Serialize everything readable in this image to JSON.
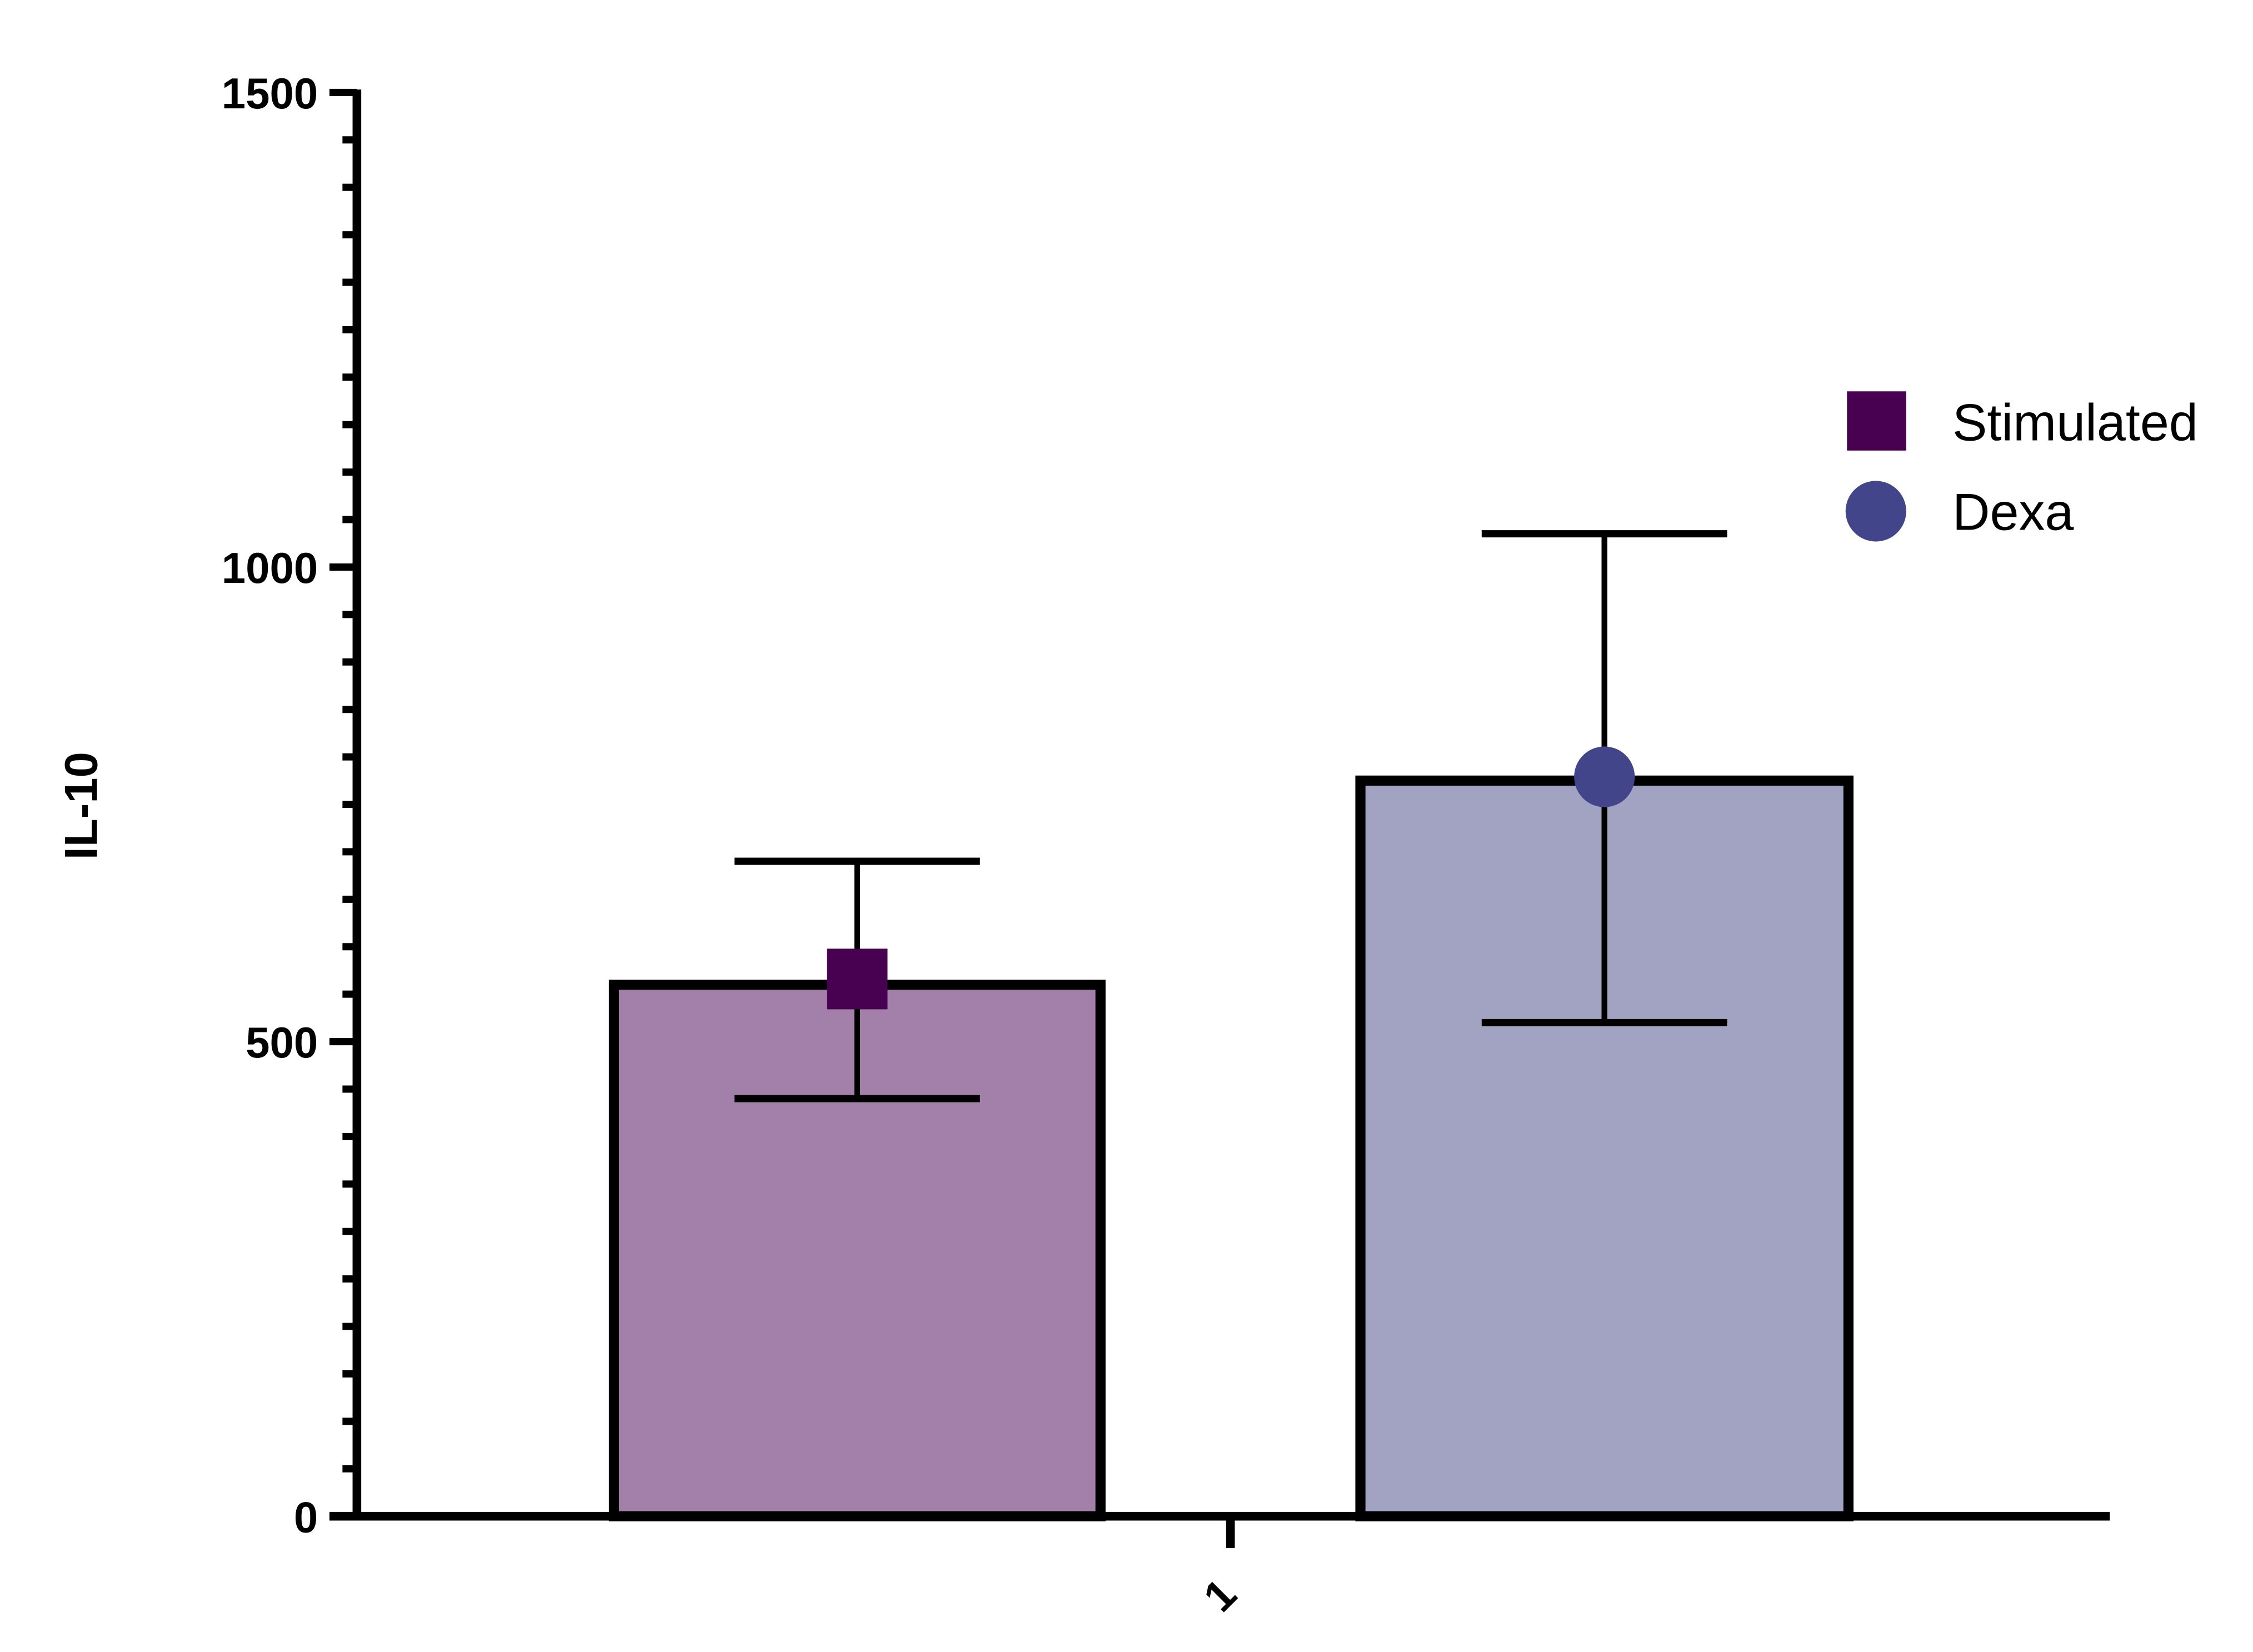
{
  "chart_data": {
    "type": "bar",
    "title": "",
    "xlabel": "",
    "ylabel": "IL-10",
    "ylim": [
      0,
      1500
    ],
    "yticks": [
      "0",
      "500",
      "1000",
      "1500"
    ],
    "y_minor_tick_step": 50,
    "categories": [
      "1"
    ],
    "grid": false,
    "legend_position": "right",
    "series": [
      {
        "name": "Stimulated",
        "values": [
          560
        ],
        "point": [
          566
        ],
        "error_low": [
          440
        ],
        "error_high": [
          690
        ],
        "bar_color": "#A380A9",
        "marker_color": "#480050",
        "marker": "square"
      },
      {
        "name": "Dexa",
        "values": [
          775
        ],
        "point": [
          779
        ],
        "error_low": [
          520
        ],
        "error_high": [
          1035
        ],
        "bar_color": "#A2A2C3",
        "marker_color": "#424589",
        "marker": "circle"
      }
    ]
  }
}
